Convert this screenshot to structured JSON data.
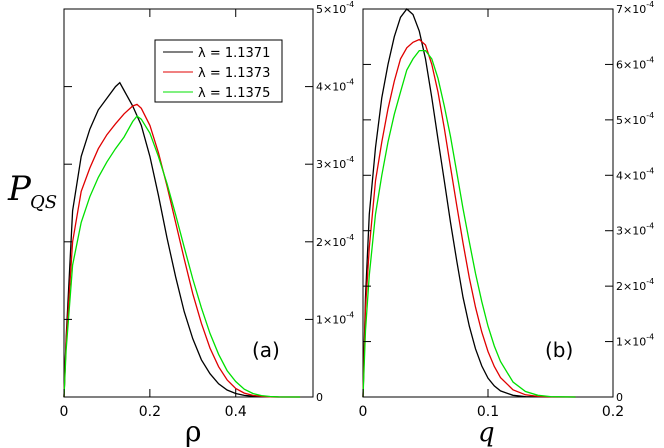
{
  "chart_data": [
    {
      "type": "line",
      "panel_label": "(a)",
      "xlabel": "ρ",
      "ylabel": "P",
      "ylabel_sub": "QS",
      "xlim": [
        0,
        0.58
      ],
      "ylim": [
        0,
        0.0005
      ],
      "x_ticks": [
        "0",
        "0.2",
        "0.4"
      ],
      "x_tick_values": [
        0,
        0.2,
        0.4
      ],
      "y_ticks": [
        {
          "value": 0,
          "label": "0",
          "exp": ""
        },
        {
          "value": 0.0001,
          "label": "1×10",
          "exp": "-4"
        },
        {
          "value": 0.0002,
          "label": "2×10",
          "exp": "-4"
        },
        {
          "value": 0.0003,
          "label": "3×10",
          "exp": "-4"
        },
        {
          "value": 0.0004,
          "label": "4×10",
          "exp": "-4"
        },
        {
          "value": 0.0005,
          "label": "5×10",
          "exp": "-4"
        }
      ],
      "legend_position": "top-right",
      "series": [
        {
          "name": "λ = 1.1371",
          "color": "#000000",
          "x": [
            0,
            0.005,
            0.02,
            0.04,
            0.06,
            0.08,
            0.1,
            0.12,
            0.13,
            0.14,
            0.16,
            0.18,
            0.2,
            0.22,
            0.24,
            0.26,
            0.28,
            0.3,
            0.32,
            0.34,
            0.36,
            0.38,
            0.4,
            0.42,
            0.44,
            0.46,
            0.48,
            0.5,
            0.55
          ],
          "y": [
            0,
            7.5e-05,
            0.00024,
            0.00031,
            0.000345,
            0.00037,
            0.000385,
            0.0004,
            0.000405,
            0.000395,
            0.000375,
            0.00035,
            0.00031,
            0.00026,
            0.000205,
            0.000155,
            0.00011,
            7.5e-05,
            4.8e-05,
            3e-05,
            1.7e-05,
            9e-06,
            4.5e-06,
            2e-06,
            1e-06,
            4e-07,
            1e-07,
            0,
            0
          ]
        },
        {
          "name": "λ = 1.1373",
          "color": "#e00000",
          "x": [
            0,
            0.005,
            0.02,
            0.04,
            0.06,
            0.08,
            0.1,
            0.12,
            0.14,
            0.16,
            0.17,
            0.18,
            0.2,
            0.22,
            0.24,
            0.26,
            0.28,
            0.3,
            0.32,
            0.34,
            0.36,
            0.38,
            0.4,
            0.42,
            0.44,
            0.46,
            0.48,
            0.5,
            0.55
          ],
          "y": [
            0,
            7e-05,
            0.0002,
            0.000265,
            0.000295,
            0.00032,
            0.000338,
            0.000352,
            0.000365,
            0.000375,
            0.000377,
            0.000372,
            0.00035,
            0.000315,
            0.000272,
            0.000225,
            0.000178,
            0.000133,
            9.5e-05,
            6.3e-05,
            3.9e-05,
            2.2e-05,
            1.1e-05,
            5e-06,
            2e-06,
            8e-07,
            2e-07,
            0,
            0
          ]
        },
        {
          "name": "λ = 1.1375",
          "color": "#00e000",
          "x": [
            0,
            0.005,
            0.02,
            0.04,
            0.06,
            0.08,
            0.1,
            0.12,
            0.14,
            0.16,
            0.17,
            0.18,
            0.2,
            0.22,
            0.24,
            0.26,
            0.28,
            0.3,
            0.32,
            0.34,
            0.36,
            0.38,
            0.4,
            0.42,
            0.44,
            0.46,
            0.48,
            0.5,
            0.55
          ],
          "y": [
            0,
            6e-05,
            0.00017,
            0.000225,
            0.000258,
            0.000283,
            0.000303,
            0.00032,
            0.000335,
            0.000355,
            0.000362,
            0.000358,
            0.00034,
            0.00031,
            0.000275,
            0.000235,
            0.000193,
            0.000152,
            0.000115,
            8.2e-05,
            5.5e-05,
            3.4e-05,
            2e-05,
            1e-05,
            4.5e-06,
            1.8e-06,
            6e-07,
            1e-07,
            0
          ]
        }
      ]
    },
    {
      "type": "line",
      "panel_label": "(b)",
      "xlabel": "q",
      "xlim": [
        0,
        0.2
      ],
      "ylim": [
        0,
        0.0007
      ],
      "x_ticks": [
        "0",
        "0.1",
        "0.2"
      ],
      "x_tick_values": [
        0,
        0.1,
        0.2
      ],
      "y_ticks": [
        {
          "value": 0,
          "label": "0",
          "exp": ""
        },
        {
          "value": 0.0001,
          "label": "1×10",
          "exp": "-4"
        },
        {
          "value": 0.0002,
          "label": "2×10",
          "exp": "-4"
        },
        {
          "value": 0.0003,
          "label": "3×10",
          "exp": "-4"
        },
        {
          "value": 0.0004,
          "label": "4×10",
          "exp": "-4"
        },
        {
          "value": 0.0005,
          "label": "5×10",
          "exp": "-4"
        },
        {
          "value": 0.0006,
          "label": "6×10",
          "exp": "-4"
        },
        {
          "value": 0.0007,
          "label": "7×10",
          "exp": "-4"
        }
      ],
      "series": [
        {
          "name": "λ = 1.1371",
          "color": "#000000",
          "x": [
            0,
            0.002,
            0.005,
            0.01,
            0.015,
            0.02,
            0.025,
            0.03,
            0.035,
            0.04,
            0.045,
            0.05,
            0.055,
            0.06,
            0.065,
            0.07,
            0.075,
            0.08,
            0.085,
            0.09,
            0.095,
            0.1,
            0.105,
            0.11,
            0.12,
            0.13,
            0.14,
            0.15,
            0.17
          ],
          "y": [
            0,
            0.00018,
            0.00033,
            0.00045,
            0.00054,
            0.0006,
            0.00065,
            0.000685,
            0.0007,
            0.00069,
            0.00066,
            0.00061,
            0.00054,
            0.000465,
            0.00039,
            0.000315,
            0.000245,
            0.00018,
            0.000128,
            8.7e-05,
            5.6e-05,
            3.4e-05,
            2e-05,
            1.1e-05,
            3e-06,
            8e-07,
            2e-07,
            0,
            0
          ]
        },
        {
          "name": "λ = 1.1373",
          "color": "#e00000",
          "x": [
            0,
            0.002,
            0.005,
            0.01,
            0.015,
            0.02,
            0.025,
            0.03,
            0.035,
            0.04,
            0.045,
            0.05,
            0.055,
            0.06,
            0.065,
            0.07,
            0.075,
            0.08,
            0.085,
            0.09,
            0.095,
            0.1,
            0.105,
            0.11,
            0.12,
            0.13,
            0.14,
            0.15,
            0.17
          ],
          "y": [
            0,
            0.00016,
            0.00027,
            0.00039,
            0.00046,
            0.00052,
            0.00057,
            0.00061,
            0.00063,
            0.00064,
            0.000645,
            0.000635,
            0.0006,
            0.00055,
            0.000485,
            0.000415,
            0.000345,
            0.000278,
            0.000215,
            0.000162,
            0.000117,
            8.2e-05,
            5.5e-05,
            3.5e-05,
            1.3e-05,
            4e-06,
            1e-06,
            2e-07,
            0
          ]
        },
        {
          "name": "λ = 1.1375",
          "color": "#00e000",
          "x": [
            0,
            0.002,
            0.005,
            0.01,
            0.015,
            0.02,
            0.025,
            0.03,
            0.035,
            0.04,
            0.045,
            0.05,
            0.055,
            0.06,
            0.065,
            0.07,
            0.075,
            0.08,
            0.085,
            0.09,
            0.095,
            0.1,
            0.105,
            0.11,
            0.12,
            0.13,
            0.14,
            0.15,
            0.17
          ],
          "y": [
            0,
            0.00012,
            0.00022,
            0.00033,
            0.0004,
            0.00046,
            0.00051,
            0.00055,
            0.00059,
            0.00061,
            0.000625,
            0.000625,
            0.00061,
            0.000575,
            0.000525,
            0.00047,
            0.000405,
            0.00034,
            0.00028,
            0.000223,
            0.000172,
            0.000128,
            9.2e-05,
            6.4e-05,
            2.7e-05,
            1e-05,
            3e-06,
            8e-07,
            0
          ]
        }
      ]
    }
  ]
}
